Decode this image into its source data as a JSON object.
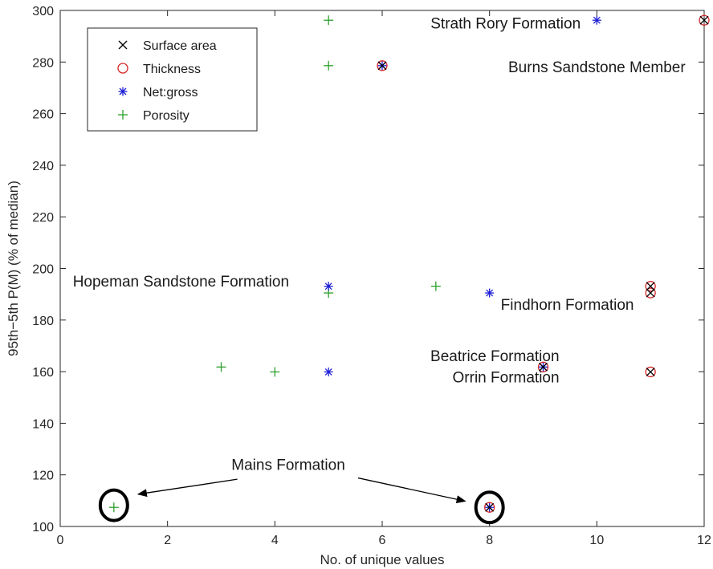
{
  "chart_data": {
    "type": "scatter",
    "xlabel": "No. of unique values",
    "ylabel": "95th−5th P(M) (% of median)",
    "xlim": [
      0,
      12
    ],
    "ylim": [
      100,
      300
    ],
    "x_ticks": [
      0,
      2,
      4,
      6,
      8,
      10,
      12
    ],
    "y_ticks": [
      100,
      120,
      140,
      160,
      180,
      200,
      220,
      240,
      260,
      280,
      300
    ],
    "grid": false,
    "legend_position": "top-left",
    "series": [
      {
        "name": "Surface area",
        "marker": "x",
        "color": "#000000",
        "points": [
          [
            6,
            278.6
          ],
          [
            8,
            107.4
          ],
          [
            9,
            161.8
          ],
          [
            11,
            193.1
          ],
          [
            11,
            190.5
          ],
          [
            11,
            159.9
          ],
          [
            12,
            296.2
          ]
        ]
      },
      {
        "name": "Thickness",
        "marker": "circle",
        "color": "#d62728",
        "points": [
          [
            6,
            278.6
          ],
          [
            8,
            107.4
          ],
          [
            9,
            161.8
          ],
          [
            11,
            193.1
          ],
          [
            11,
            190.5
          ],
          [
            11,
            159.9
          ],
          [
            12,
            296.2
          ]
        ]
      },
      {
        "name": "Net:gross",
        "marker": "asterisk",
        "color": "#1f1fd6",
        "points": [
          [
            5,
            193.1
          ],
          [
            5,
            159.9
          ],
          [
            6,
            278.6
          ],
          [
            8,
            190.5
          ],
          [
            8,
            107.4
          ],
          [
            9,
            161.8
          ],
          [
            10,
            296.2
          ]
        ]
      },
      {
        "name": "Porosity",
        "marker": "plus",
        "color": "#2ca02c",
        "points": [
          [
            1,
            107.4
          ],
          [
            3,
            161.8
          ],
          [
            4,
            159.9
          ],
          [
            5,
            296.2
          ],
          [
            5,
            278.6
          ],
          [
            5,
            190.5
          ],
          [
            7,
            193.1
          ]
        ]
      }
    ],
    "annotations": [
      {
        "text": "Strath Rory Formation",
        "x": 8.3,
        "y": 293,
        "anchor": "middle"
      },
      {
        "text": "Burns Sandstone Member",
        "x": 10.0,
        "y": 276,
        "anchor": "middle"
      },
      {
        "text": "Hopeman Sandstone Formation",
        "x": 2.25,
        "y": 193,
        "anchor": "middle"
      },
      {
        "text": "Findhorn Formation",
        "x": 9.45,
        "y": 184,
        "anchor": "middle"
      },
      {
        "text": "Beatrice Formation",
        "x": 9.3,
        "y": 164,
        "anchor": "end"
      },
      {
        "text": "Orrin Formation",
        "x": 9.3,
        "y": 155.8,
        "anchor": "end"
      },
      {
        "text": "Mains Formation",
        "x": 4.25,
        "y": 122,
        "anchor": "middle"
      }
    ],
    "highlight_circles": [
      {
        "x": 1,
        "y": 108.2
      },
      {
        "x": 8,
        "y": 107.4
      }
    ],
    "arrows": [
      {
        "from": [
          3.3,
          118.3
        ],
        "to": [
          1.45,
          112.5
        ]
      },
      {
        "from": [
          5.55,
          118.8
        ],
        "to": [
          7.55,
          109.8
        ]
      }
    ]
  }
}
